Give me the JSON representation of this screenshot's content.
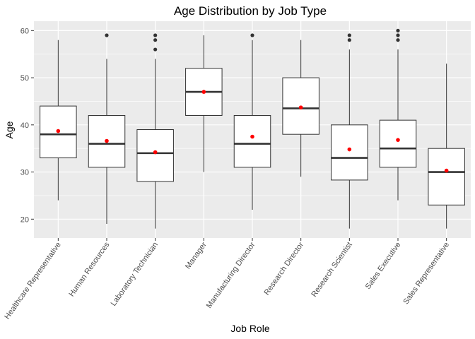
{
  "chart_data": {
    "type": "boxplot",
    "title": "Age Distribution by Job Type",
    "xlabel": "Job Role",
    "ylabel": "Age",
    "ylim": [
      16,
      62
    ],
    "yticks": [
      20,
      30,
      40,
      50,
      60
    ],
    "grid": true,
    "categories": [
      "Healthcare Representative",
      "Human Resources",
      "Laboratory Technician",
      "Manager",
      "Manufacturing Director",
      "Research Director",
      "Research Scientist",
      "Sales Executive",
      "Sales Representative"
    ],
    "boxes": [
      {
        "min": 24,
        "q1": 33,
        "median": 38,
        "q3": 44,
        "max": 58,
        "mean": 38.7,
        "outliers": []
      },
      {
        "min": 19,
        "q1": 31,
        "median": 36,
        "q3": 42,
        "max": 54,
        "mean": 36.6,
        "outliers": [
          59
        ]
      },
      {
        "min": 18,
        "q1": 28,
        "median": 34,
        "q3": 39,
        "max": 54,
        "mean": 34.2,
        "outliers": [
          56,
          58,
          59
        ]
      },
      {
        "min": 30,
        "q1": 42,
        "median": 47,
        "q3": 52,
        "max": 59,
        "mean": 47.0,
        "outliers": []
      },
      {
        "min": 22,
        "q1": 31,
        "median": 36,
        "q3": 42,
        "max": 58,
        "mean": 37.5,
        "outliers": [
          59
        ]
      },
      {
        "min": 29,
        "q1": 38,
        "median": 43.5,
        "q3": 50,
        "max": 58,
        "mean": 43.7,
        "outliers": []
      },
      {
        "min": 18,
        "q1": 28.3,
        "median": 33,
        "q3": 40,
        "max": 56,
        "mean": 34.8,
        "outliers": [
          58,
          59
        ]
      },
      {
        "min": 24,
        "q1": 31,
        "median": 35,
        "q3": 41,
        "max": 56,
        "mean": 36.8,
        "outliers": [
          58,
          59,
          60
        ]
      },
      {
        "min": 18,
        "q1": 23,
        "median": 30,
        "q3": 35,
        "max": 53,
        "mean": 30.3,
        "outliers": []
      }
    ],
    "colors": {
      "panel": "#ebebeb",
      "grid": "#ffffff",
      "box_fill": "#ffffff",
      "box_stroke": "#333333",
      "mean_point": "#ff0000",
      "outlier_point": "#333333"
    }
  }
}
